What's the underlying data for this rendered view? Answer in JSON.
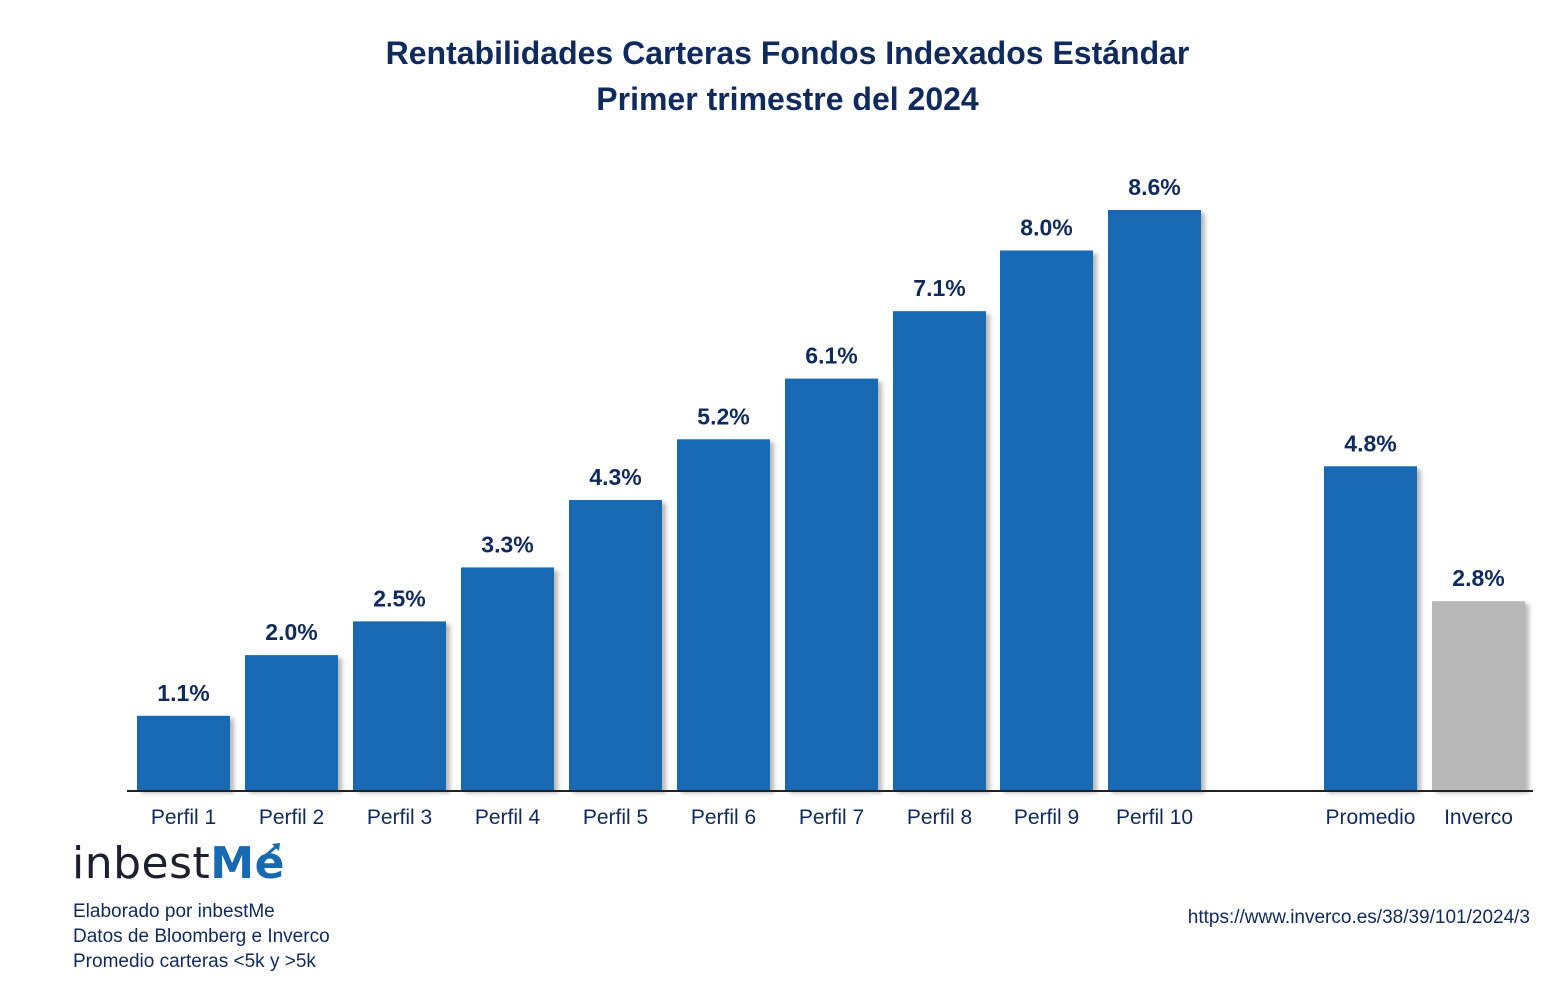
{
  "chart_data": {
    "type": "bar",
    "title": "Rentabilidades Carteras Fondos Indexados Estándar",
    "subtitle": "Primer trimestre del 2024",
    "categories": [
      "Perfil 1",
      "Perfil 2",
      "Perfil 3",
      "Perfil 4",
      "Perfil 5",
      "Perfil 6",
      "Perfil 7",
      "Perfil 8",
      "Perfil 9",
      "Perfil 10",
      "Promedio",
      "Inverco"
    ],
    "values": [
      1.1,
      2.0,
      2.5,
      3.3,
      4.3,
      5.2,
      6.1,
      7.1,
      8.0,
      8.6,
      4.8,
      2.8
    ],
    "value_labels": [
      "1.1%",
      "2.0%",
      "2.5%",
      "3.3%",
      "4.3%",
      "5.2%",
      "6.1%",
      "7.1%",
      "8.0%",
      "8.6%",
      "4.8%",
      "2.8%"
    ],
    "colors": [
      "#1769b2",
      "#1769b2",
      "#1769b2",
      "#1769b2",
      "#1769b2",
      "#1769b2",
      "#1769b2",
      "#1769b2",
      "#1769b2",
      "#1769b2",
      "#1769b2",
      "#b8b8b8"
    ],
    "unit": "%",
    "xlabel": "",
    "ylabel": "",
    "ylim": [
      0,
      8.6
    ],
    "grid": false,
    "legend": "none"
  },
  "brand": {
    "logo_text_main": "inbest",
    "logo_text_accent": "Me",
    "accent_color": "#1769b2",
    "text_color": "#0f2a5c"
  },
  "notes": {
    "line1": "Elaborado por inbestMe",
    "line2": "Datos de Bloomberg e Inverco",
    "line3": "Promedio carteras <5k y >5k"
  },
  "source": "https://www.inverco.es/38/39/101/2024/3"
}
